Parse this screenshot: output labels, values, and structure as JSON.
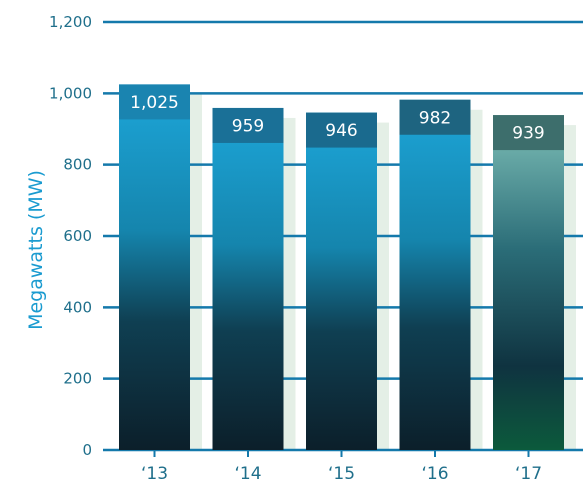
{
  "chart_data": {
    "type": "bar",
    "categories": [
      "‘13",
      "‘14",
      "‘15",
      "‘16",
      "‘17"
    ],
    "values": [
      1025,
      959,
      946,
      982,
      939
    ],
    "data_labels": [
      "1,025",
      "959",
      "946",
      "982",
      "939"
    ],
    "title": "",
    "xlabel": "",
    "ylabel": "Megawatts (MW)",
    "ylim": [
      0,
      1200
    ],
    "yticks": [
      0,
      200,
      400,
      600,
      800,
      1000,
      1200
    ],
    "ytick_labels": [
      "0",
      "200",
      "400",
      "600",
      "800",
      "1,000",
      "1,200"
    ],
    "grid": true
  },
  "colors": {
    "axis_line": "#1479ab",
    "tick_text": "#1f6f8b",
    "ylabel_text": "#1a9bd0",
    "shadow": "#e4efe6",
    "bar_top": "#1da6d9",
    "bar_mid": "#0f3a4a",
    "bar_bottom": "#0c1f2a",
    "bar_last_top": "#6fb6b0",
    "bar_last_bottom": "#0c5a3c",
    "label_band": [
      "#1a84b0",
      "#1a7097",
      "#1a6a8e",
      "#1e6480",
      "#3d6e6c"
    ]
  }
}
